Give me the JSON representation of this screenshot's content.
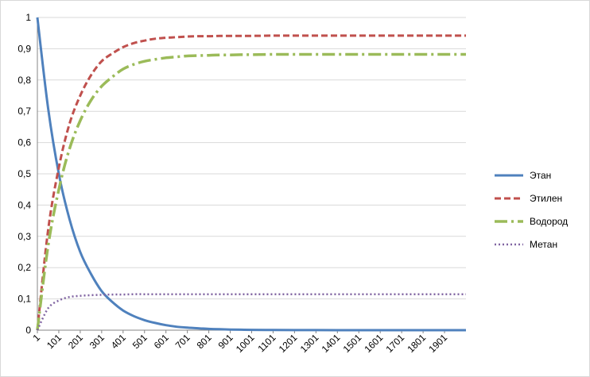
{
  "chart_data": {
    "type": "line",
    "title": "",
    "xlabel": "",
    "ylabel": "",
    "ylim": [
      0,
      1
    ],
    "y_ticks": [
      "0",
      "0,1",
      "0,2",
      "0,3",
      "0,4",
      "0,5",
      "0,6",
      "0,7",
      "0,8",
      "0,9",
      "1"
    ],
    "x_ticks": [
      "1",
      "101",
      "201",
      "301",
      "401",
      "501",
      "601",
      "701",
      "801",
      "901",
      "1001",
      "1101",
      "1201",
      "1301",
      "1401",
      "1501",
      "1601",
      "1701",
      "1801",
      "1901"
    ],
    "x_range": [
      1,
      2001
    ],
    "grid": "horizontal",
    "legend_position": "right",
    "x": [
      1,
      51,
      101,
      151,
      201,
      251,
      301,
      351,
      401,
      451,
      501,
      551,
      601,
      651,
      701,
      751,
      801,
      851,
      901,
      951,
      1001,
      1101,
      1201,
      1301,
      1401,
      1501,
      1601,
      1701,
      1801,
      1901,
      2001
    ],
    "series": [
      {
        "name": "Этан",
        "color": "#4f81bd",
        "dash": "solid",
        "values": [
          1.0,
          0.71,
          0.5,
          0.355,
          0.25,
          0.18,
          0.125,
          0.09,
          0.063,
          0.045,
          0.032,
          0.023,
          0.016,
          0.011,
          0.008,
          0.006,
          0.004,
          0.003,
          0.002,
          0.0015,
          0.001,
          0.0005,
          0.0003,
          0.0002,
          0.0001,
          0.0001,
          0.0,
          0.0,
          0.0,
          0.0,
          0.0
        ]
      },
      {
        "name": "Этилен",
        "color": "#c0504d",
        "dash": "dash",
        "values": [
          0.0,
          0.32,
          0.52,
          0.66,
          0.75,
          0.815,
          0.86,
          0.885,
          0.905,
          0.918,
          0.926,
          0.932,
          0.935,
          0.937,
          0.939,
          0.94,
          0.94,
          0.941,
          0.941,
          0.941,
          0.941,
          0.942,
          0.942,
          0.942,
          0.942,
          0.942,
          0.942,
          0.942,
          0.942,
          0.942,
          0.942
        ]
      },
      {
        "name": "Водород",
        "color": "#9bbb59",
        "dash": "longdashdot",
        "values": [
          0.0,
          0.27,
          0.45,
          0.58,
          0.67,
          0.735,
          0.78,
          0.81,
          0.835,
          0.85,
          0.86,
          0.866,
          0.871,
          0.874,
          0.877,
          0.878,
          0.879,
          0.88,
          0.88,
          0.881,
          0.881,
          0.882,
          0.882,
          0.882,
          0.882,
          0.882,
          0.882,
          0.882,
          0.882,
          0.882,
          0.882
        ]
      },
      {
        "name": "Метан",
        "color": "#8064a2",
        "dash": "dot",
        "values": [
          0.0,
          0.07,
          0.095,
          0.106,
          0.11,
          0.112,
          0.113,
          0.114,
          0.114,
          0.115,
          0.115,
          0.115,
          0.115,
          0.115,
          0.115,
          0.115,
          0.115,
          0.115,
          0.115,
          0.115,
          0.115,
          0.115,
          0.115,
          0.115,
          0.115,
          0.115,
          0.115,
          0.115,
          0.115,
          0.115,
          0.115
        ]
      }
    ]
  }
}
